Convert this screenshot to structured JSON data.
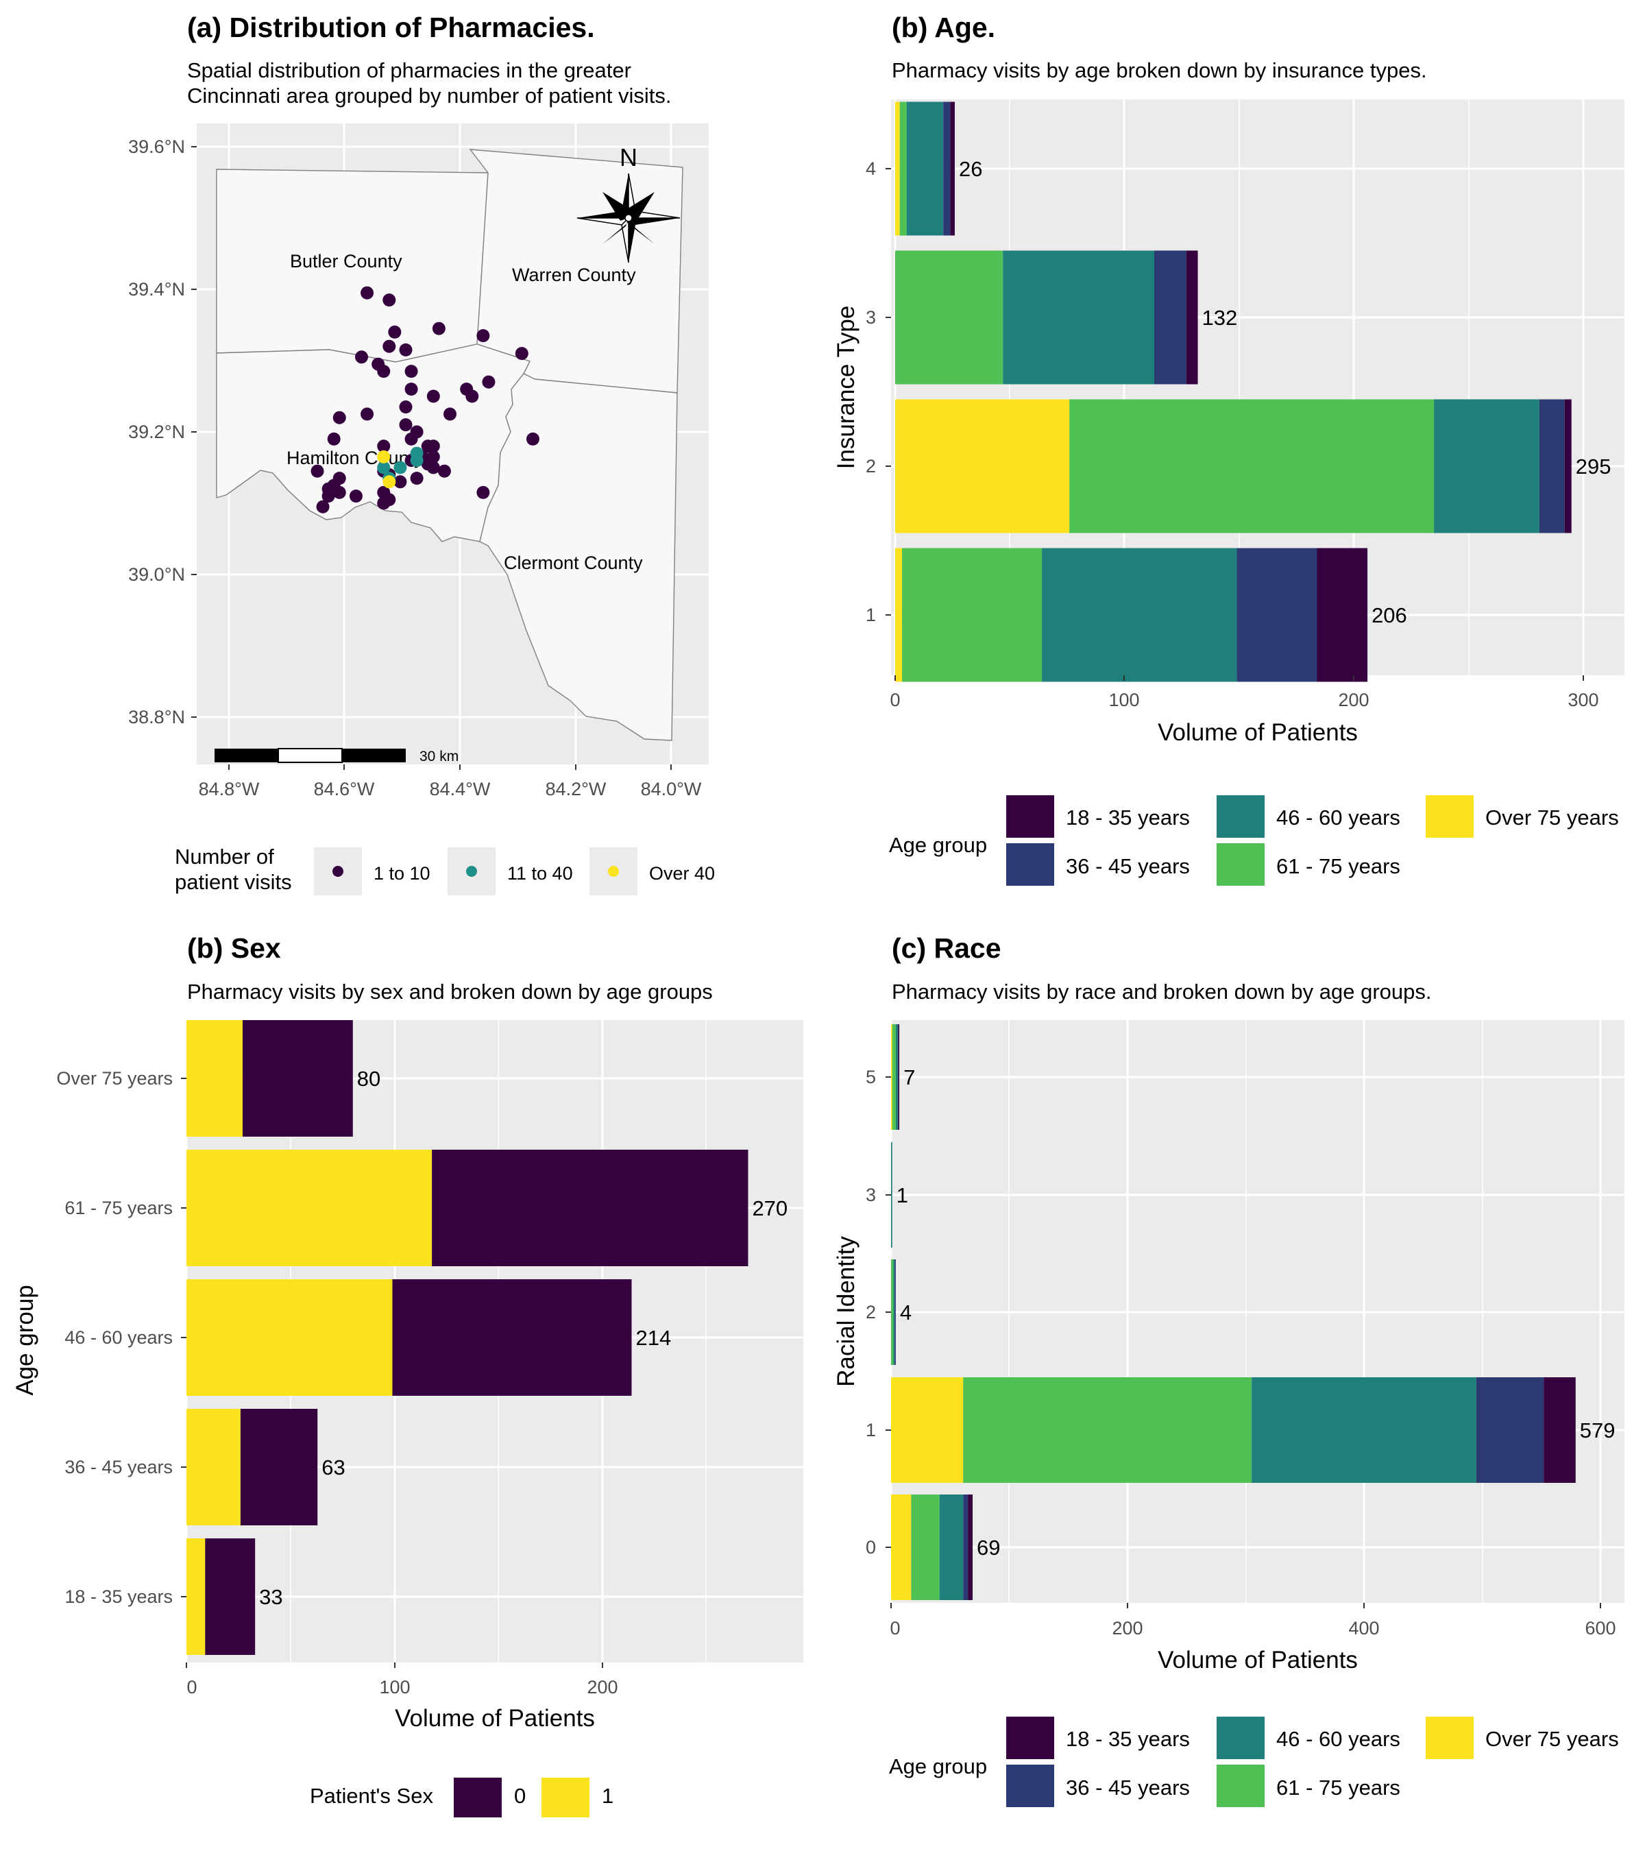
{
  "colors": {
    "panel_bg": "#ebebeb",
    "grid": "#ffffff",
    "age_18_35": "#35013f",
    "age_36_45": "#2c3a73",
    "age_46_60": "#1f7f7a",
    "age_61_75": "#4fc053",
    "age_over_75": "#fbe21f",
    "sex_0": "#35013f",
    "sex_1": "#fbe21f",
    "visits_1_10": "#35013f",
    "visits_11_40": "#1f8f8a",
    "visits_over_40": "#fbe21f"
  },
  "panel_a": {
    "title": "(a) Distribution of Pharmacies.",
    "subtitle_lines": [
      "Spatial distribution of pharmacies in the greater",
      "Cincinnati area grouped by number of patient visits."
    ],
    "y_ticks": [
      "39.6°N",
      "39.4°N",
      "39.2°N",
      "39.0°N",
      "38.8°N"
    ],
    "x_ticks": [
      "84.8°W",
      "84.6°W",
      "84.4°W",
      "84.2°W",
      "84.0°W"
    ],
    "counties": [
      "Butler County",
      "Warren County",
      "Hamilton County",
      "Clermont County"
    ],
    "north_label": "N",
    "scale_label": "30 km",
    "legend": {
      "title_lines": [
        "Number of",
        "patient visits"
      ],
      "items": [
        "1 to 10",
        "11 to 40",
        "Over 40"
      ]
    },
    "map_data": {
      "type": "scatter",
      "xlim": [
        -84.85,
        -83.95
      ],
      "ylim": [
        38.75,
        39.65
      ],
      "points_1_to_10": [
        [
          -84.55,
          39.395
        ],
        [
          -84.51,
          39.385
        ],
        [
          -84.42,
          39.345
        ],
        [
          -84.5,
          39.34
        ],
        [
          -84.34,
          39.335
        ],
        [
          -84.51,
          39.32
        ],
        [
          -84.48,
          39.315
        ],
        [
          -84.56,
          39.305
        ],
        [
          -84.27,
          39.31
        ],
        [
          -84.53,
          39.295
        ],
        [
          -84.47,
          39.285
        ],
        [
          -84.52,
          39.285
        ],
        [
          -84.33,
          39.27
        ],
        [
          -84.47,
          39.26
        ],
        [
          -84.37,
          39.26
        ],
        [
          -84.43,
          39.25
        ],
        [
          -84.36,
          39.25
        ],
        [
          -84.48,
          39.235
        ],
        [
          -84.4,
          39.225
        ],
        [
          -84.55,
          39.225
        ],
        [
          -84.6,
          39.22
        ],
        [
          -84.48,
          39.21
        ],
        [
          -84.46,
          39.2
        ],
        [
          -84.47,
          39.19
        ],
        [
          -84.61,
          39.19
        ],
        [
          -84.25,
          39.19
        ],
        [
          -84.43,
          39.18
        ],
        [
          -84.44,
          39.18
        ],
        [
          -84.52,
          39.18
        ],
        [
          -84.45,
          39.165
        ],
        [
          -84.43,
          39.165
        ],
        [
          -84.47,
          39.16
        ],
        [
          -84.44,
          39.155
        ],
        [
          -84.43,
          39.15
        ],
        [
          -84.41,
          39.145
        ],
        [
          -84.64,
          39.145
        ],
        [
          -84.52,
          39.145
        ],
        [
          -84.51,
          39.14
        ],
        [
          -84.6,
          39.135
        ],
        [
          -84.46,
          39.135
        ],
        [
          -84.49,
          39.13
        ],
        [
          -84.61,
          39.125
        ],
        [
          -84.62,
          39.12
        ],
        [
          -84.6,
          39.115
        ],
        [
          -84.52,
          39.115
        ],
        [
          -84.34,
          39.115
        ],
        [
          -84.62,
          39.11
        ],
        [
          -84.57,
          39.11
        ],
        [
          -84.51,
          39.105
        ],
        [
          -84.52,
          39.1
        ],
        [
          -84.63,
          39.095
        ]
      ],
      "points_11_to_40": [
        [
          -84.46,
          39.17
        ],
        [
          -84.46,
          39.16
        ],
        [
          -84.49,
          39.15
        ],
        [
          -84.52,
          39.15
        ],
        [
          -84.51,
          39.135
        ]
      ],
      "points_over_40": [
        [
          -84.52,
          39.165
        ],
        [
          -84.51,
          39.13
        ]
      ]
    }
  },
  "panel_b_age": {
    "title": "(b) Age.",
    "subtitle": "Pharmacy visits by age broken down by insurance types.",
    "x_ticks": [
      "0",
      "100",
      "200",
      "300"
    ],
    "y_ticks": [
      "1",
      "2",
      "3",
      "4"
    ],
    "xlabel": "Volume of Patients",
    "ylabel": "Insurance Type",
    "totals": [
      "206",
      "295",
      "132",
      "26"
    ]
  },
  "panel_b_sex": {
    "title": "(b) Sex",
    "subtitle": "Pharmacy visits by sex and broken down by age groups",
    "x_ticks": [
      "0",
      "100",
      "200"
    ],
    "y_ticks": [
      "18 - 35 years",
      "36 - 45 years",
      "46 - 60 years",
      "61 - 75 years",
      "Over 75 years"
    ],
    "xlabel": "Volume of Patients",
    "ylabel": "Age group",
    "totals": [
      "33",
      "63",
      "214",
      "270",
      "80"
    ],
    "legend": {
      "title": "Patient's Sex",
      "items": [
        "0",
        "1"
      ]
    }
  },
  "panel_c_race": {
    "title": "(c) Race",
    "subtitle": "Pharmacy visits by race and broken down by age groups.",
    "x_ticks": [
      "0",
      "200",
      "400",
      "600"
    ],
    "y_ticks": [
      "0",
      "1",
      "2",
      "3",
      "5"
    ],
    "xlabel": "Volume of Patients",
    "ylabel": "Racial Identity",
    "totals": [
      "69",
      "579",
      "4",
      "1",
      "7"
    ]
  },
  "age_legend": {
    "title": "Age group",
    "items": [
      "18 - 35 years",
      "36 - 45 years",
      "46 - 60 years",
      "61 - 75 years",
      "Over 75 years"
    ]
  },
  "chart_data": [
    {
      "type": "bar",
      "orientation": "horizontal",
      "stacked": true,
      "title": "(b) Age.",
      "subtitle": "Pharmacy visits by age broken down by insurance types.",
      "xlabel": "Volume of Patients",
      "ylabel": "Insurance Type",
      "xlim": [
        0,
        320
      ],
      "categories": [
        "1",
        "2",
        "3",
        "4"
      ],
      "series": [
        {
          "name": "Over 75 years",
          "values": [
            3,
            76,
            0,
            2
          ]
        },
        {
          "name": "61 - 75 years",
          "values": [
            61,
            159,
            47,
            3
          ]
        },
        {
          "name": "46 - 60 years",
          "values": [
            85,
            46,
            66,
            16
          ]
        },
        {
          "name": "36 - 45 years",
          "values": [
            35,
            11,
            14,
            3
          ]
        },
        {
          "name": "18 - 35 years",
          "values": [
            22,
            3,
            5,
            2
          ]
        }
      ],
      "totals": [
        206,
        295,
        132,
        26
      ],
      "legend": "bottom"
    },
    {
      "type": "bar",
      "orientation": "horizontal",
      "stacked": true,
      "title": "(b) Sex",
      "subtitle": "Pharmacy visits by sex and broken down by age groups",
      "xlabel": "Volume of Patients",
      "ylabel": "Age group",
      "xlim": [
        0,
        296
      ],
      "categories": [
        "18 - 35 years",
        "36 - 45 years",
        "46 - 60 years",
        "61 - 75 years",
        "Over 75 years"
      ],
      "series": [
        {
          "name": "1",
          "values": [
            9,
            26,
            99,
            118,
            27
          ]
        },
        {
          "name": "0",
          "values": [
            24,
            37,
            115,
            152,
            53
          ]
        }
      ],
      "totals": [
        33,
        63,
        214,
        270,
        80
      ],
      "legend": "bottom"
    },
    {
      "type": "bar",
      "orientation": "horizontal",
      "stacked": true,
      "title": "(c) Race",
      "subtitle": "Pharmacy visits by race and broken down by age groups.",
      "xlabel": "Volume of Patients",
      "ylabel": "Racial Identity",
      "xlim": [
        0,
        610
      ],
      "categories": [
        "0",
        "1",
        "2",
        "3",
        "5"
      ],
      "series": [
        {
          "name": "Over 75 years",
          "values": [
            17,
            61,
            0,
            0,
            1
          ]
        },
        {
          "name": "61 - 75 years",
          "values": [
            24,
            244,
            2,
            0,
            3
          ]
        },
        {
          "name": "46 - 60 years",
          "values": [
            20,
            190,
            1,
            1,
            2
          ]
        },
        {
          "name": "36 - 45 years",
          "values": [
            4,
            57,
            1,
            0,
            0
          ]
        },
        {
          "name": "18 - 35 years",
          "values": [
            4,
            27,
            0,
            0,
            1
          ]
        }
      ],
      "totals": [
        69,
        579,
        4,
        1,
        7
      ],
      "legend": "bottom"
    }
  ]
}
